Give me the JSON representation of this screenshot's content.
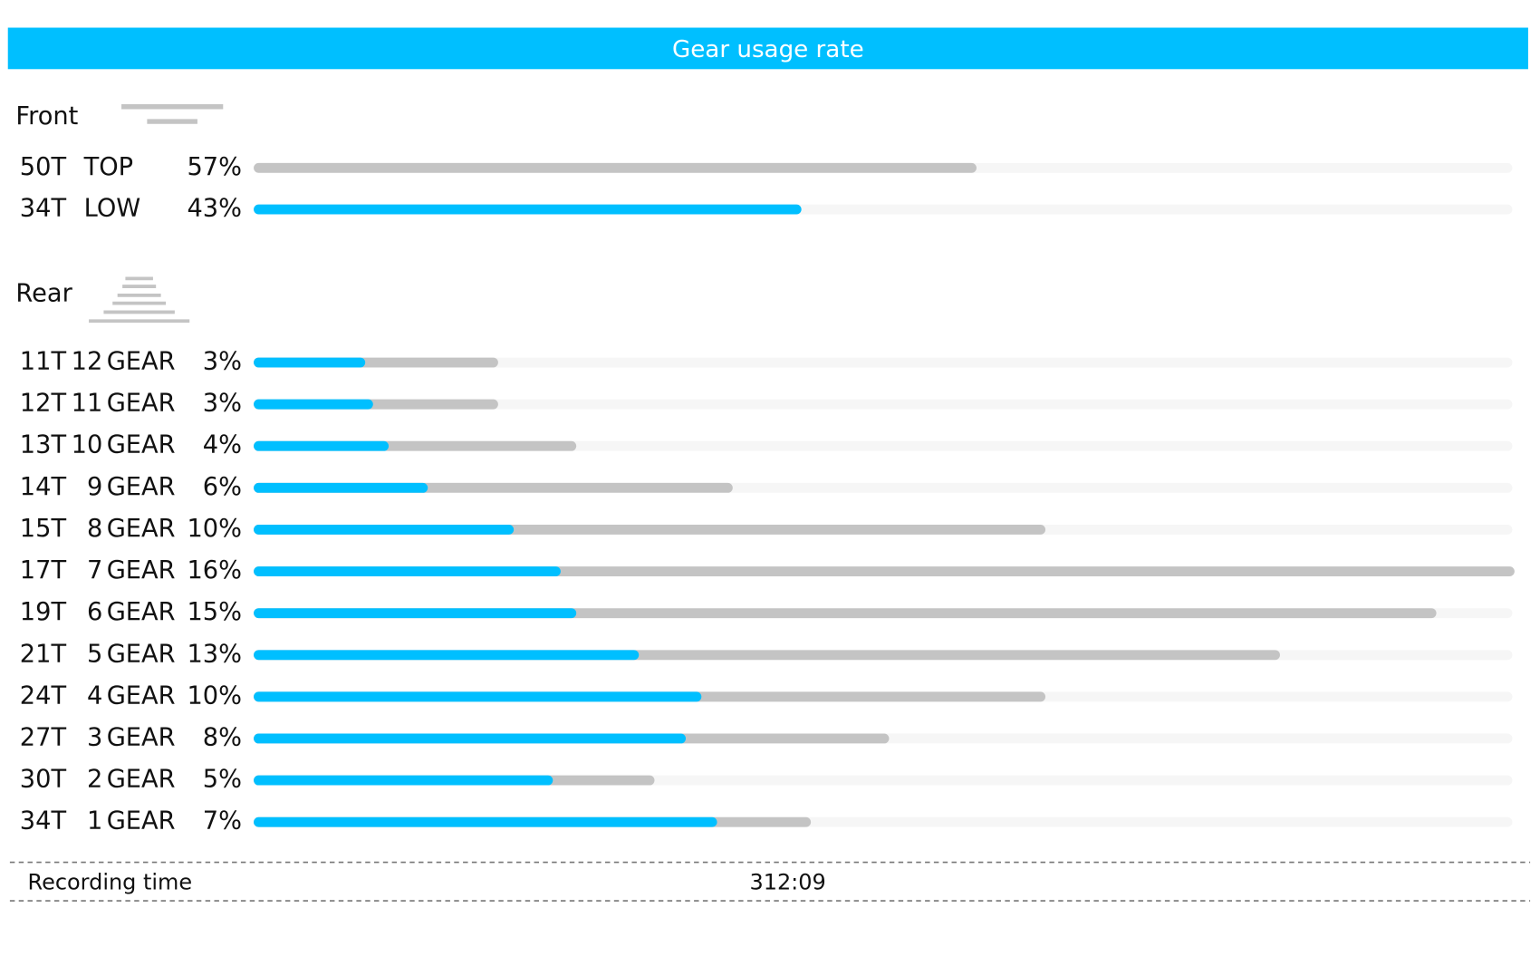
{
  "header": {
    "title": "Gear usage rate"
  },
  "colors": {
    "total": "#c4c4c4",
    "low": "#00bfff"
  },
  "front": {
    "title": "Front",
    "rows": [
      {
        "teeth": "50T",
        "gear": "TOP",
        "value": 57,
        "value_label": "57%",
        "color": "#c4c4c4"
      },
      {
        "teeth": "34T",
        "gear": "LOW",
        "value": 43,
        "value_label": "43%",
        "color": "#00bfff"
      }
    ]
  },
  "rear": {
    "title": "Rear",
    "gear_word": "GEAR",
    "rows": [
      {
        "teeth": "11T",
        "gear": "12",
        "value": 3,
        "value_label": "3%",
        "low_value": 1.3
      },
      {
        "teeth": "12T",
        "gear": "11",
        "value": 3,
        "value_label": "3%",
        "low_value": 1.4
      },
      {
        "teeth": "13T",
        "gear": "10",
        "value": 4,
        "value_label": "4%",
        "low_value": 1.6
      },
      {
        "teeth": "14T",
        "gear": "9",
        "value": 6,
        "value_label": "6%",
        "low_value": 2.1
      },
      {
        "teeth": "15T",
        "gear": "8",
        "value": 10,
        "value_label": "10%",
        "low_value": 3.2
      },
      {
        "teeth": "17T",
        "gear": "7",
        "value": 16,
        "value_label": "16%",
        "low_value": 3.8
      },
      {
        "teeth": "19T",
        "gear": "6",
        "value": 15,
        "value_label": "15%",
        "low_value": 4.0
      },
      {
        "teeth": "21T",
        "gear": "5",
        "value": 13,
        "value_label": "13%",
        "low_value": 4.8
      },
      {
        "teeth": "24T",
        "gear": "4",
        "value": 10,
        "value_label": "10%",
        "low_value": 5.6
      },
      {
        "teeth": "27T",
        "gear": "3",
        "value": 8,
        "value_label": "8%",
        "low_value": 5.4
      },
      {
        "teeth": "30T",
        "gear": "2",
        "value": 5,
        "value_label": "5%",
        "low_value": 3.7
      },
      {
        "teeth": "34T",
        "gear": "1",
        "value": 7,
        "value_label": "7%",
        "low_value": 5.8
      }
    ]
  },
  "footer": {
    "label": "Recording time",
    "value": "312:09"
  }
}
